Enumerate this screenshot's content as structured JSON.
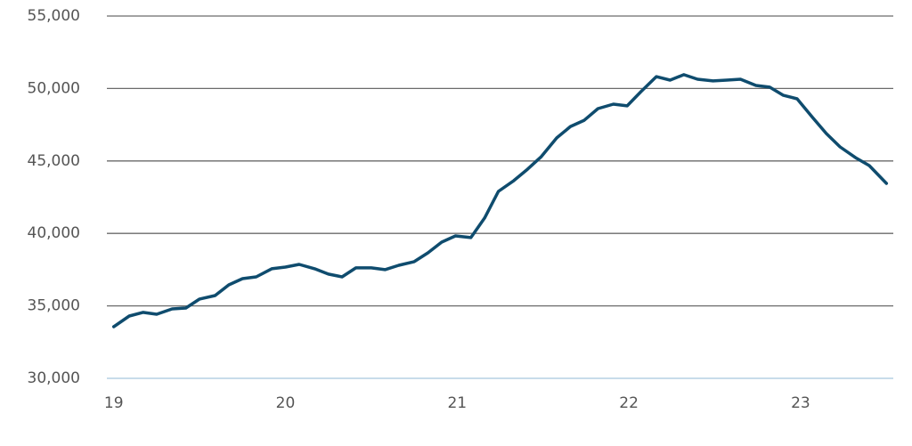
{
  "chart_data": {
    "type": "line",
    "x": [
      19.0,
      19.09,
      19.17,
      19.25,
      19.34,
      19.42,
      19.5,
      19.59,
      19.67,
      19.75,
      19.83,
      19.92,
      20.0,
      20.08,
      20.17,
      20.25,
      20.33,
      20.41,
      20.5,
      20.58,
      20.66,
      20.75,
      20.83,
      20.91,
      20.99,
      21.08,
      21.16,
      21.24,
      21.33,
      21.41,
      21.49,
      21.58,
      21.66,
      21.74,
      21.82,
      21.91,
      21.99,
      22.07,
      22.16,
      22.24,
      22.32,
      22.4,
      22.49,
      22.57,
      22.65,
      22.74,
      22.82,
      22.9,
      22.98,
      23.07,
      23.15,
      23.23,
      23.32,
      23.4,
      23.5
    ],
    "series": [
      {
        "color": "#0f4c6e",
        "values": [
          33560,
          34300,
          34550,
          34420,
          34790,
          34850,
          35470,
          35710,
          36450,
          36880,
          37000,
          37560,
          37680,
          37860,
          37560,
          37190,
          37000,
          37620,
          37620,
          37500,
          37800,
          38050,
          38660,
          39400,
          39830,
          39710,
          41060,
          42900,
          43640,
          44430,
          45300,
          46590,
          47380,
          47810,
          48610,
          48920,
          48800,
          49780,
          50820,
          50580,
          50950,
          50640,
          50520,
          50580,
          50640,
          50210,
          50090,
          49530,
          49290,
          48000,
          46890,
          45970,
          45230,
          44680,
          43450
        ]
      }
    ],
    "xlim": [
      18.96,
      23.54
    ],
    "xticks": [
      19,
      20,
      21,
      22,
      23
    ],
    "ylim": [
      30000,
      55000
    ],
    "yticks": [
      {
        "value": 30000,
        "label": "30,000"
      },
      {
        "value": 35000,
        "label": "35,000"
      },
      {
        "value": 40000,
        "label": "40,000"
      },
      {
        "value": 45000,
        "label": "45,000"
      },
      {
        "value": 50000,
        "label": "50,000"
      },
      {
        "value": 55000,
        "label": "55,000"
      }
    ],
    "grid": true
  }
}
